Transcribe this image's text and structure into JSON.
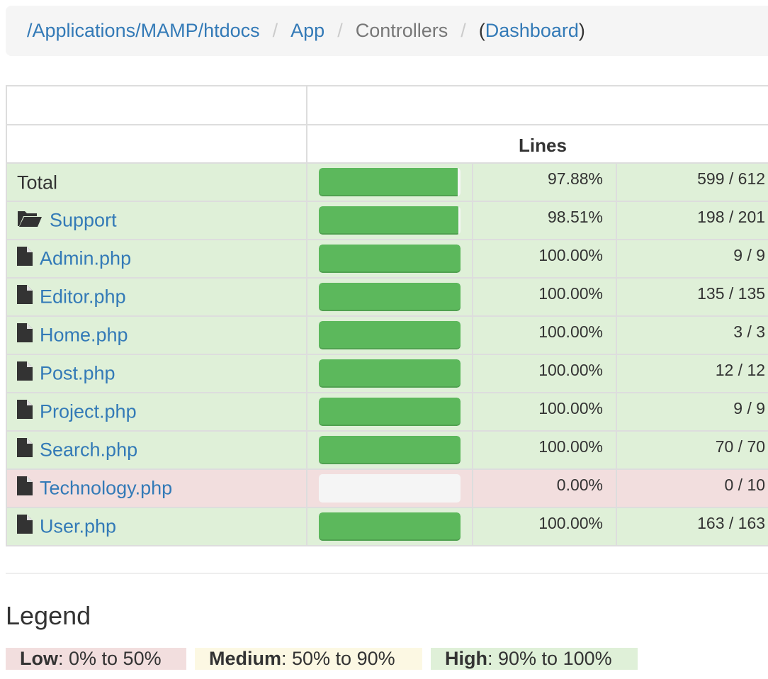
{
  "breadcrumb": {
    "root": "/Applications/MAMP/htdocs",
    "app": "App",
    "controllers": "Controllers",
    "dashboard_open": "(",
    "dashboard": "Dashboard",
    "dashboard_close": ")",
    "separator": "/"
  },
  "table": {
    "lines_header": "Lines",
    "rows": [
      {
        "name": "Total",
        "type": "total",
        "percent": "97.88%",
        "count": "599 / 612",
        "fill": 97.88,
        "status": "success"
      },
      {
        "name": "Support",
        "type": "folder",
        "percent": "98.51%",
        "count": "198 / 201",
        "fill": 98.51,
        "status": "success"
      },
      {
        "name": "Admin.php",
        "type": "file",
        "percent": "100.00%",
        "count": "9 / 9",
        "fill": 100,
        "status": "success"
      },
      {
        "name": "Editor.php",
        "type": "file",
        "percent": "100.00%",
        "count": "135 / 135",
        "fill": 100,
        "status": "success"
      },
      {
        "name": "Home.php",
        "type": "file",
        "percent": "100.00%",
        "count": "3 / 3",
        "fill": 100,
        "status": "success"
      },
      {
        "name": "Post.php",
        "type": "file",
        "percent": "100.00%",
        "count": "12 / 12",
        "fill": 100,
        "status": "success"
      },
      {
        "name": "Project.php",
        "type": "file",
        "percent": "100.00%",
        "count": "9 / 9",
        "fill": 100,
        "status": "success"
      },
      {
        "name": "Search.php",
        "type": "file",
        "percent": "100.00%",
        "count": "70 / 70",
        "fill": 100,
        "status": "success"
      },
      {
        "name": "Technology.php",
        "type": "file",
        "percent": "0.00%",
        "count": "0 / 10",
        "fill": 0,
        "status": "danger"
      },
      {
        "name": "User.php",
        "type": "file",
        "percent": "100.00%",
        "count": "163 / 163",
        "fill": 100,
        "status": "success"
      }
    ]
  },
  "legend": {
    "title": "Legend",
    "low_label": "Low",
    "low_range": ": 0% to 50%",
    "medium_label": "Medium",
    "medium_range": ": 50% to 90%",
    "high_label": "High",
    "high_range": ": 90% to 100%"
  },
  "colors": {
    "success_bg": "#dff0d8",
    "danger_bg": "#f2dede",
    "warning_bg": "#fcf8e3",
    "bar_fill": "#5cb85c",
    "link": "#337ab7"
  }
}
